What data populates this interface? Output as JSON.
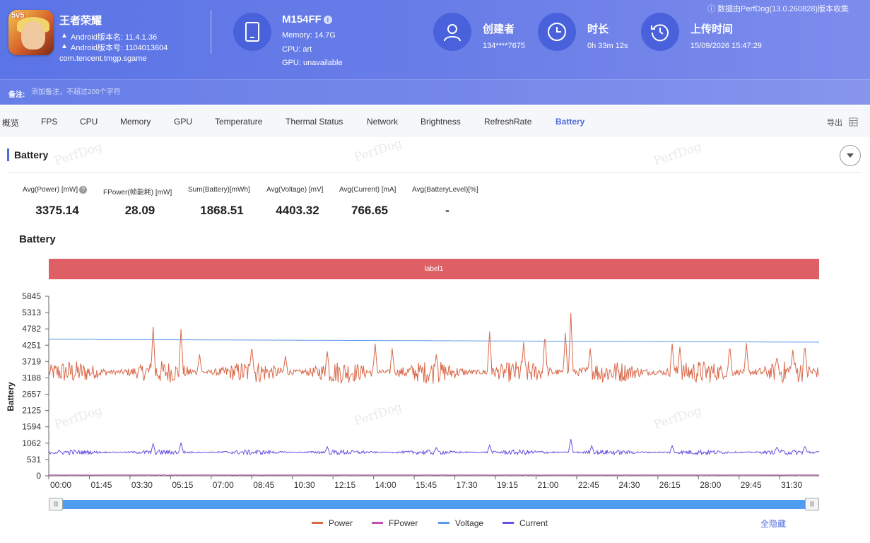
{
  "header": {
    "notice": "数据由PerfDog(13.0.260828)版本收集",
    "app": {
      "icon_badge": "5v5",
      "name": "王者荣耀",
      "android_version_name": "Android版本名: 11.4.1.36",
      "android_version_code": "Android版本号: 1104013604",
      "package": "com.tencent.tmgp.sgame"
    },
    "device": {
      "name": "M154FF",
      "memory": "Memory: 14.7G",
      "cpu": "CPU: art",
      "gpu": "GPU: unavailable"
    },
    "creator": {
      "title": "创建者",
      "value": "134****7675"
    },
    "duration": {
      "title": "时长",
      "value": "0h 33m 12s"
    },
    "upload": {
      "title": "上传时间",
      "value": "15/09/2026 15:47:29"
    },
    "remark": {
      "label": "备注:",
      "placeholder": "添加备注，不超过200个字符"
    }
  },
  "tabs": [
    "概览",
    "FPS",
    "CPU",
    "Memory",
    "GPU",
    "Temperature",
    "Thermal Status",
    "Network",
    "Brightness",
    "RefreshRate",
    "Battery"
  ],
  "active_tab": "Battery",
  "export_label": "导出",
  "section": {
    "title": "Battery"
  },
  "metrics": [
    {
      "label": "Avg(Power) [mW]",
      "value": "3375.14"
    },
    {
      "label": "FPower(帧能耗) [mW]",
      "value": "28.09"
    },
    {
      "label": "Sum(Battery)[mWh]",
      "value": "1868.51"
    },
    {
      "label": "Avg(Voltage) [mV]",
      "value": "4403.32"
    },
    {
      "label": "Avg(Current) [mA]",
      "value": "766.65"
    },
    {
      "label": "Avg(BatteryLevel)[%]",
      "value": "-"
    }
  ],
  "watermark": "PerfDog",
  "chart_data": {
    "type": "line",
    "title": "Battery",
    "ylabel": "Battery",
    "band_label": "label1",
    "ylim": [
      0,
      5845
    ],
    "yticks": [
      "5845",
      "5313",
      "4782",
      "4251",
      "3719",
      "3188",
      "2657",
      "2125",
      "1594",
      "1062",
      "531",
      "0"
    ],
    "xticks": [
      "00:00",
      "01:45",
      "03:30",
      "05:15",
      "07:00",
      "08:45",
      "10:30",
      "12:15",
      "14:00",
      "15:45",
      "17:30",
      "19:15",
      "21:00",
      "22:45",
      "24:30",
      "26:15",
      "28:00",
      "29:45",
      "31:30"
    ],
    "x_range_seconds": [
      0,
      1992
    ],
    "grid": false,
    "legend_position": "bottom",
    "series": [
      {
        "name": "Power",
        "color": "#d9694a",
        "baseline": 3375,
        "noise": 380,
        "spikes": [
          [
            270,
            4850
          ],
          [
            342,
            4780
          ],
          [
            390,
            3950
          ],
          [
            525,
            4250
          ],
          [
            612,
            3900
          ],
          [
            720,
            4050
          ],
          [
            844,
            4300
          ],
          [
            888,
            4150
          ],
          [
            1002,
            3950
          ],
          [
            1140,
            4700
          ],
          [
            1228,
            4350
          ],
          [
            1283,
            4650
          ],
          [
            1336,
            4650
          ],
          [
            1350,
            5300
          ],
          [
            1400,
            4150
          ],
          [
            1612,
            4300
          ],
          [
            1632,
            4200
          ],
          [
            1761,
            4280
          ],
          [
            1804,
            4320
          ],
          [
            1883,
            3900
          ],
          [
            1924,
            4100
          ],
          [
            1955,
            4300
          ]
        ]
      },
      {
        "name": "FPower",
        "color": "#c14fb4",
        "baseline": 28,
        "noise": 8,
        "spikes": []
      },
      {
        "name": "Voltage",
        "color": "#5b97e8",
        "start": 4445,
        "end": 4350,
        "noise": 3,
        "spikes": []
      },
      {
        "name": "Current",
        "color": "#6a4fe0",
        "baseline": 766,
        "noise": 80,
        "spikes": [
          [
            270,
            1050
          ],
          [
            342,
            1080
          ],
          [
            720,
            950
          ],
          [
            1002,
            920
          ],
          [
            1140,
            1000
          ],
          [
            1350,
            1200
          ],
          [
            1404,
            980
          ],
          [
            1612,
            980
          ],
          [
            1883,
            950
          ],
          [
            1955,
            980
          ]
        ]
      }
    ]
  },
  "hide_all_label": "全隐藏"
}
